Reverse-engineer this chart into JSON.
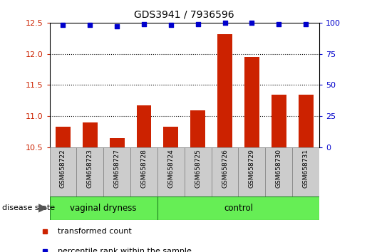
{
  "title": "GDS3941 / 7936596",
  "samples": [
    "GSM658722",
    "GSM658723",
    "GSM658727",
    "GSM658728",
    "GSM658724",
    "GSM658725",
    "GSM658726",
    "GSM658729",
    "GSM658730",
    "GSM658731"
  ],
  "bar_values": [
    10.83,
    10.9,
    10.65,
    11.17,
    10.83,
    11.1,
    12.32,
    11.95,
    11.35,
    11.35
  ],
  "dot_values": [
    98,
    98,
    97,
    99,
    98,
    99,
    100,
    100,
    99,
    99
  ],
  "bar_color": "#cc2200",
  "dot_color": "#0000cc",
  "ylim_left": [
    10.5,
    12.5
  ],
  "ylim_right": [
    0,
    100
  ],
  "yticks_left": [
    10.5,
    11.0,
    11.5,
    12.0,
    12.5
  ],
  "yticks_right": [
    0,
    25,
    50,
    75,
    100
  ],
  "grid_lines": [
    11.0,
    11.5,
    12.0
  ],
  "groups": [
    {
      "label": "vaginal dryness",
      "start": 0,
      "end": 4
    },
    {
      "label": "control",
      "start": 4,
      "end": 10
    }
  ],
  "group_color": "#66ee55",
  "group_border_color": "#228822",
  "group_label_prefix": "disease state",
  "sample_box_color": "#cccccc",
  "sample_box_border": "#888888",
  "legend_items": [
    {
      "label": "transformed count",
      "color": "#cc2200"
    },
    {
      "label": "percentile rank within the sample",
      "color": "#0000cc"
    }
  ]
}
